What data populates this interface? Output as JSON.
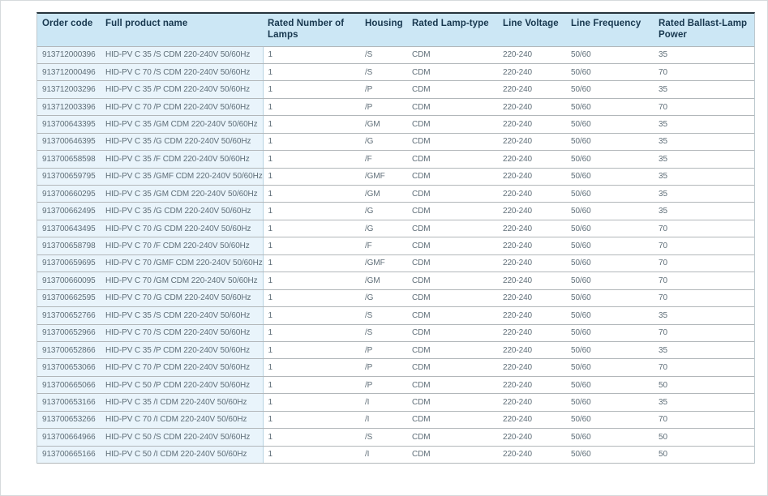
{
  "table": {
    "columns": [
      {
        "key": "order_code",
        "label": "Order code"
      },
      {
        "key": "full_product_name",
        "label": "Full product name"
      },
      {
        "key": "rated_number_of_lamps",
        "label": "Rated Number of Lamps"
      },
      {
        "key": "housing",
        "label": "Housing"
      },
      {
        "key": "rated_lamp_type",
        "label": "Rated Lamp-type"
      },
      {
        "key": "line_voltage",
        "label": "Line Voltage"
      },
      {
        "key": "line_frequency",
        "label": "Line Frequency"
      },
      {
        "key": "rated_ballast_lamp_power",
        "label": "Rated Ballast-Lamp Power"
      }
    ],
    "rows": [
      [
        "913712000396",
        "HID-PV C 35 /S CDM 220-240V 50/60Hz",
        "1",
        "/S",
        "CDM",
        "220-240",
        "50/60",
        "35"
      ],
      [
        "913712000496",
        "HID-PV C 70 /S CDM 220-240V 50/60Hz",
        "1",
        "/S",
        "CDM",
        "220-240",
        "50/60",
        "70"
      ],
      [
        "913712003296",
        "HID-PV C 35 /P CDM 220-240V 50/60Hz",
        "1",
        "/P",
        "CDM",
        "220-240",
        "50/60",
        "35"
      ],
      [
        "913712003396",
        "HID-PV C 70 /P CDM 220-240V 50/60Hz",
        "1",
        "/P",
        "CDM",
        "220-240",
        "50/60",
        "70"
      ],
      [
        "913700643395",
        "HID-PV C 35 /GM CDM 220-240V 50/60Hz",
        "1",
        "/GM",
        "CDM",
        "220-240",
        "50/60",
        "35"
      ],
      [
        "913700646395",
        "HID-PV C 35 /G CDM 220-240V 50/60Hz",
        "1",
        "/G",
        "CDM",
        "220-240",
        "50/60",
        "35"
      ],
      [
        "913700658598",
        "HID-PV C 35 /F CDM 220-240V 50/60Hz",
        "1",
        "/F",
        "CDM",
        "220-240",
        "50/60",
        "35"
      ],
      [
        "913700659795",
        "HID-PV C 35 /GMF CDM 220-240V 50/60Hz",
        "1",
        "/GMF",
        "CDM",
        "220-240",
        "50/60",
        "35"
      ],
      [
        "913700660295",
        "HID-PV C 35 /GM CDM 220-240V 50/60Hz",
        "1",
        "/GM",
        "CDM",
        "220-240",
        "50/60",
        "35"
      ],
      [
        "913700662495",
        "HID-PV C 35 /G CDM 220-240V 50/60Hz",
        "1",
        "/G",
        "CDM",
        "220-240",
        "50/60",
        "35"
      ],
      [
        "913700643495",
        "HID-PV C 70 /G CDM 220-240V 50/60Hz",
        "1",
        "/G",
        "CDM",
        "220-240",
        "50/60",
        "70"
      ],
      [
        "913700658798",
        "HID-PV C 70 /F CDM 220-240V 50/60Hz",
        "1",
        "/F",
        "CDM",
        "220-240",
        "50/60",
        "70"
      ],
      [
        "913700659695",
        "HID-PV C 70 /GMF CDM 220-240V 50/60Hz",
        "1",
        "/GMF",
        "CDM",
        "220-240",
        "50/60",
        "70"
      ],
      [
        "913700660095",
        "HID-PV C 70 /GM CDM 220-240V 50/60Hz",
        "1",
        "/GM",
        "CDM",
        "220-240",
        "50/60",
        "70"
      ],
      [
        "913700662595",
        "HID-PV C 70 /G CDM 220-240V 50/60Hz",
        "1",
        "/G",
        "CDM",
        "220-240",
        "50/60",
        "70"
      ],
      [
        "913700652766",
        "HID-PV C 35 /S CDM 220-240V 50/60Hz",
        "1",
        "/S",
        "CDM",
        "220-240",
        "50/60",
        "35"
      ],
      [
        "913700652966",
        "HID-PV C 70 /S CDM 220-240V 50/60Hz",
        "1",
        "/S",
        "CDM",
        "220-240",
        "50/60",
        "70"
      ],
      [
        "913700652866",
        "HID-PV C 35 /P CDM 220-240V 50/60Hz",
        "1",
        "/P",
        "CDM",
        "220-240",
        "50/60",
        "35"
      ],
      [
        "913700653066",
        "HID-PV C 70 /P CDM 220-240V 50/60Hz",
        "1",
        "/P",
        "CDM",
        "220-240",
        "50/60",
        "70"
      ],
      [
        "913700665066",
        "HID-PV C 50 /P CDM 220-240V 50/60Hz",
        "1",
        "/P",
        "CDM",
        "220-240",
        "50/60",
        "50"
      ],
      [
        "913700653166",
        "HID-PV C 35 /I CDM 220-240V 50/60Hz",
        "1",
        "/I",
        "CDM",
        "220-240",
        "50/60",
        "35"
      ],
      [
        "913700653266",
        "HID-PV C 70 /I CDM 220-240V 50/60Hz",
        "1",
        "/I",
        "CDM",
        "220-240",
        "50/60",
        "70"
      ],
      [
        "913700664966",
        "HID-PV C 50 /S CDM 220-240V 50/60Hz",
        "1",
        "/S",
        "CDM",
        "220-240",
        "50/60",
        "50"
      ],
      [
        "913700665166",
        "HID-PV C 50 /I CDM 220-240V 50/60Hz",
        "1",
        "/I",
        "CDM",
        "220-240",
        "50/60",
        "50"
      ]
    ]
  },
  "colors": {
    "header_bg": "#cce7f5",
    "header_text": "#17374e",
    "header_top_border": "#26343c",
    "row_tint_bg": "#e9f4fb",
    "row_border": "#b2b7ba",
    "table_outer_border": "#bcc8ce",
    "tint_divider": "#b7d3e2",
    "cell_text": "#5f6e78"
  }
}
